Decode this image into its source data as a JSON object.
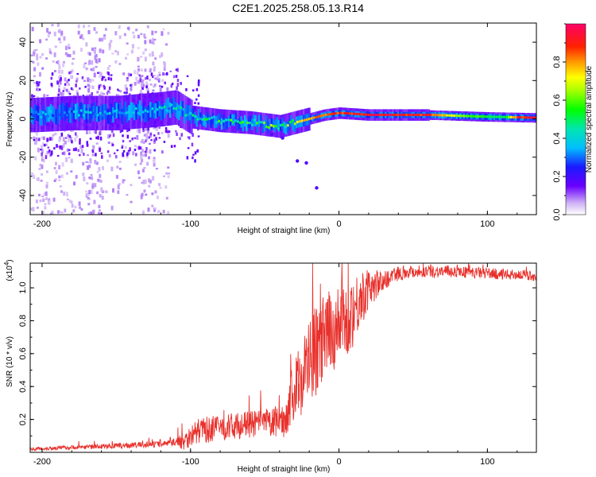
{
  "title": "C2E1.2025.258.05.13.R14",
  "chart_data": [
    {
      "type": "heatmap",
      "name": "spectrogram",
      "xlabel": "Height of straight line (km)",
      "ylabel": "Frequency (Hz)",
      "xlim": [
        -208,
        133
      ],
      "ylim": [
        -50,
        50
      ],
      "xticks": [
        -200,
        -100,
        0,
        100
      ],
      "xtick_labels": [
        "-200",
        "-100",
        "0",
        "100"
      ],
      "yticks": [
        -40,
        -20,
        0,
        20,
        40
      ],
      "ytick_labels": [
        "-40",
        "-20",
        "0",
        "20",
        "40"
      ],
      "colorbar": {
        "label": "Normalized spectral amplitude",
        "range": [
          0,
          1
        ],
        "ticks": [
          0.0,
          0.2,
          0.4,
          0.6,
          0.8
        ],
        "tick_labels": [
          "0.0",
          "0.2",
          "0.4",
          "0.6",
          "0.8"
        ]
      },
      "ridge": {
        "x": [
          -205,
          -180,
          -150,
          -120,
          -110,
          -100,
          -80,
          -60,
          -50,
          -40,
          -30,
          -20,
          -15,
          -10,
          0,
          20,
          40,
          60,
          80,
          100,
          133
        ],
        "y": [
          2,
          3,
          3,
          5,
          6,
          1,
          -1,
          -2,
          -3,
          -4,
          -2,
          0,
          1,
          2,
          3,
          2,
          2,
          2,
          1.5,
          1,
          0.5
        ]
      },
      "peak_amplitude_profile": {
        "x": [
          -208,
          -150,
          -120,
          -100,
          -80,
          -60,
          -40,
          -25,
          -15,
          0,
          20,
          60,
          80,
          110,
          120,
          133
        ],
        "values": [
          0.35,
          0.4,
          0.45,
          0.55,
          0.55,
          0.6,
          0.65,
          0.75,
          0.85,
          0.9,
          0.95,
          0.9,
          0.65,
          0.5,
          0.9,
          0.95
        ]
      }
    },
    {
      "type": "line",
      "name": "snr",
      "xlabel": "Height of straight line (km)",
      "ylabel": "SNR (10 * v/v)",
      "y_multiplier": "(x10",
      "y_multiplier_exp": "4",
      "y_multiplier_close": ")",
      "xlim": [
        -208,
        133
      ],
      "ylim": [
        0,
        1.15
      ],
      "xticks": [
        -200,
        -100,
        0,
        100
      ],
      "xtick_labels": [
        "-200",
        "-100",
        "0",
        "100"
      ],
      "yticks": [
        0.2,
        0.4,
        0.6,
        0.8,
        1.0
      ],
      "ytick_labels": [
        "0.2",
        "0.4",
        "0.6",
        "0.8",
        "1.0"
      ],
      "color": "#e8312c",
      "series": [
        {
          "name": "SNR",
          "x": [
            -208,
            -180,
            -150,
            -120,
            -105,
            -95,
            -80,
            -70,
            -60,
            -50,
            -42,
            -36,
            -32,
            -28,
            -24,
            -20,
            -15,
            -10,
            -5,
            0,
            5,
            10,
            15,
            20,
            25,
            30,
            35,
            40,
            50,
            60,
            70,
            80,
            90,
            100,
            110,
            120,
            133
          ],
          "y": [
            0.02,
            0.03,
            0.04,
            0.05,
            0.07,
            0.13,
            0.15,
            0.16,
            0.17,
            0.18,
            0.18,
            0.2,
            0.34,
            0.4,
            0.5,
            0.55,
            0.62,
            0.68,
            0.74,
            0.77,
            0.8,
            0.87,
            0.94,
            0.99,
            1.02,
            1.04,
            1.07,
            1.09,
            1.1,
            1.1,
            1.1,
            1.1,
            1.09,
            1.09,
            1.08,
            1.08,
            1.07
          ]
        }
      ],
      "noise_amplitude": {
        "x": [
          -208,
          -110,
          -105,
          -90,
          -60,
          -40,
          -35,
          -25,
          -15,
          0,
          10,
          20,
          30,
          45,
          133
        ],
        "amp": [
          0.01,
          0.02,
          0.06,
          0.08,
          0.08,
          0.09,
          0.12,
          0.25,
          0.28,
          0.25,
          0.22,
          0.12,
          0.06,
          0.04,
          0.03
        ]
      }
    }
  ]
}
